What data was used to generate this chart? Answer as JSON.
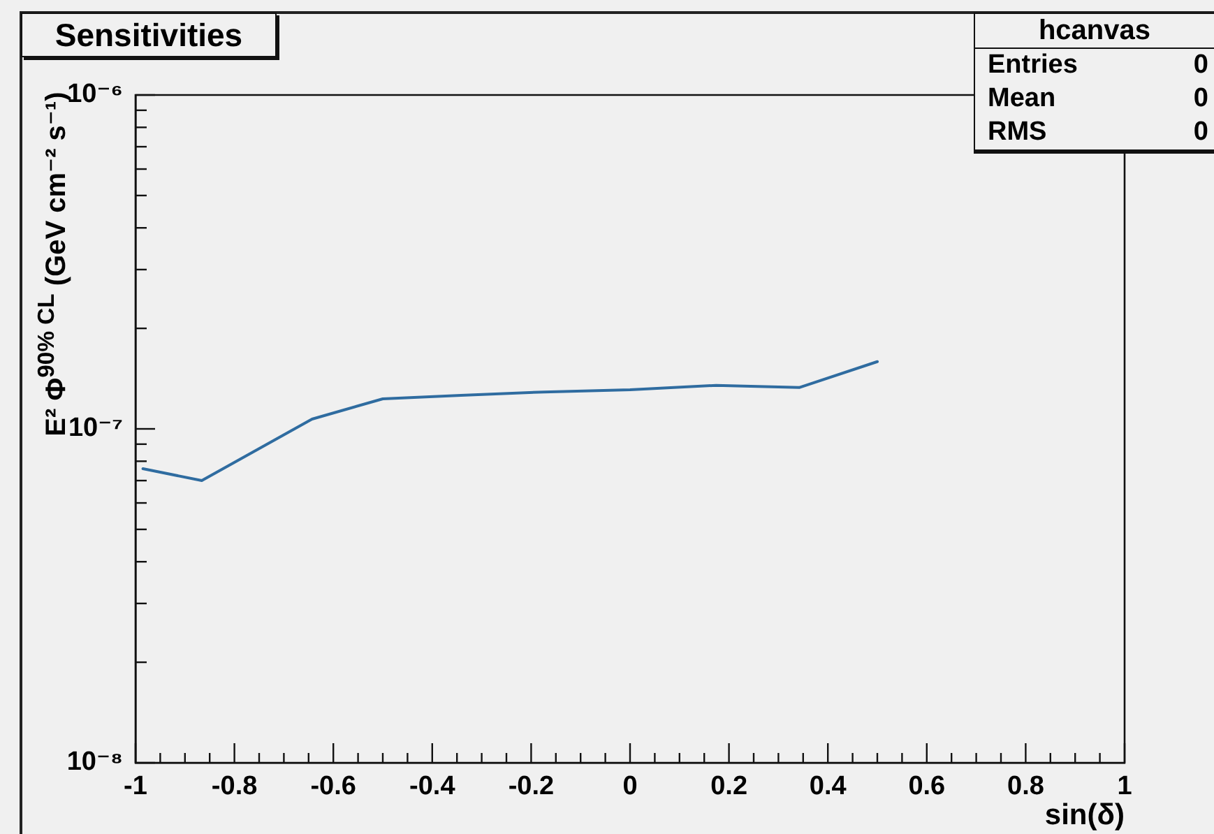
{
  "chart_data": {
    "type": "line",
    "title": "Sensitivities",
    "xlabel": "sin(δ)",
    "ylabel": "E² Φ$^{90% CL}$ (GeV cm⁻² s⁻¹)",
    "x": [
      -0.985,
      -0.866,
      -0.643,
      -0.5,
      -0.342,
      -0.174,
      0,
      0.174,
      0.342,
      0.5
    ],
    "values": [
      7.6e-08,
      7e-08,
      1.07e-07,
      1.23e-07,
      1.26e-07,
      1.29e-07,
      1.31e-07,
      1.35e-07,
      1.33e-07,
      1.59e-07
    ],
    "color": "#2f6ca0",
    "log": "y",
    "xlim": [
      -1,
      1
    ],
    "ylim": [
      1e-08,
      1e-06
    ],
    "xticks": [
      -1,
      {
        "value": -0.95,
        "label": null
      },
      {
        "value": -0.9,
        "label": null
      },
      {
        "value": -0.85,
        "label": null
      },
      -0.8,
      {
        "value": -0.75,
        "label": null
      },
      {
        "value": -0.7,
        "label": null
      },
      {
        "value": -0.65,
        "label": null
      },
      -0.6,
      {
        "value": -0.55,
        "label": null
      },
      {
        "value": -0.5,
        "label": null
      },
      {
        "value": -0.45,
        "label": null
      },
      -0.4,
      {
        "value": -0.35,
        "label": null
      },
      {
        "value": -0.3,
        "label": null
      },
      {
        "value": -0.25,
        "label": null
      },
      -0.2,
      {
        "value": -0.15,
        "label": null
      },
      {
        "value": -0.1,
        "label": null
      },
      {
        "value": -0.05,
        "label": null
      },
      0,
      {
        "value": 0.05,
        "label": null
      },
      {
        "value": 0.1,
        "label": null
      },
      {
        "value": 0.15,
        "label": null
      },
      0.2,
      {
        "value": 0.25,
        "label": null
      },
      {
        "value": 0.3,
        "label": null
      },
      {
        "value": 0.35,
        "label": null
      },
      0.4,
      {
        "value": 0.45,
        "label": null
      },
      {
        "value": 0.5,
        "label": null
      },
      {
        "value": 0.55,
        "label": null
      },
      0.6,
      {
        "value": 0.65,
        "label": null
      },
      {
        "value": 0.7,
        "label": null
      },
      {
        "value": 0.75,
        "label": null
      },
      0.8,
      {
        "value": 0.85,
        "label": null
      },
      {
        "value": 0.9,
        "label": null
      },
      {
        "value": 0.95,
        "label": null
      },
      1
    ],
    "yticks": [
      {
        "value": 1e-08,
        "label": "10⁻⁸"
      },
      {
        "value": 2e-08,
        "label": null
      },
      {
        "value": 3e-08,
        "label": null
      },
      {
        "value": 4e-08,
        "label": null
      },
      {
        "value": 5e-08,
        "label": null
      },
      {
        "value": 6e-08,
        "label": null
      },
      {
        "value": 7e-08,
        "label": null
      },
      {
        "value": 8e-08,
        "label": null
      },
      {
        "value": 9e-08,
        "label": null
      },
      {
        "value": 1e-07,
        "label": "10⁻⁷"
      },
      {
        "value": 2e-07,
        "label": null
      },
      {
        "value": 3e-07,
        "label": null
      },
      {
        "value": 4e-07,
        "label": null
      },
      {
        "value": 5e-07,
        "label": null
      },
      {
        "value": 6e-07,
        "label": null
      },
      {
        "value": 7e-07,
        "label": null
      },
      {
        "value": 8e-07,
        "label": null
      },
      {
        "value": 9e-07,
        "label": null
      },
      {
        "value": 1e-06,
        "label": "10⁻⁶"
      }
    ],
    "annotations": [
      "hcanvas",
      "Entries",
      "0",
      "Mean",
      "0",
      "RMS",
      "0"
    ]
  }
}
